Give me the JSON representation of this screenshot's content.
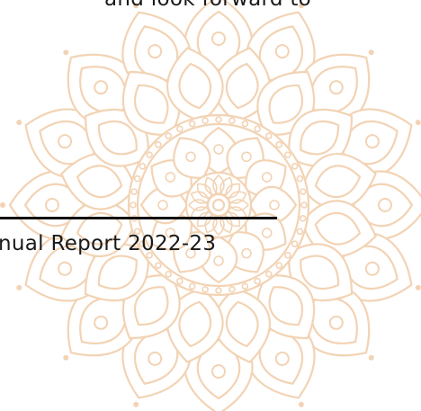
{
  "document": {
    "text_top": "and look forward to",
    "footer": "nual Report 2022-23"
  }
}
